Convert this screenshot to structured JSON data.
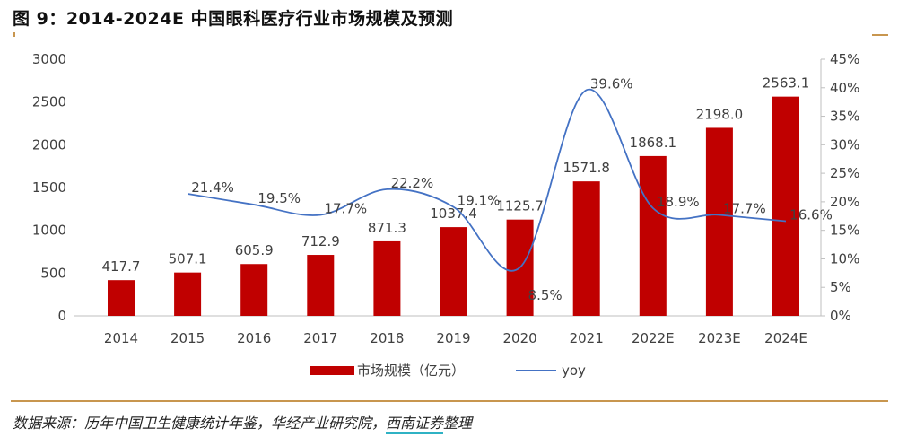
{
  "title": "图 9：2014-2024E 中国眼科医疗行业市场规模及预测",
  "source": {
    "prefix": "数据来源：历年中国卫生健康统计年鉴，华经产业研究院，",
    "highlight": "西南证券",
    "suffix": "整理"
  },
  "chart_data": {
    "type": "bar+line",
    "categories": [
      "2014",
      "2015",
      "2016",
      "2017",
      "2018",
      "2019",
      "2020",
      "2021",
      "2022E",
      "2023E",
      "2024E"
    ],
    "series": [
      {
        "name": "市场规模（亿元）",
        "type": "bar",
        "axis": "left",
        "color": "#C00000",
        "values": [
          417.7,
          507.1,
          605.9,
          712.9,
          871.3,
          1037.4,
          1125.7,
          1571.8,
          1868.1,
          2198.0,
          2563.1
        ],
        "labels": [
          "417.7",
          "507.1",
          "605.9",
          "712.9",
          "871.3",
          "1037.4",
          "1125.7",
          "1571.8",
          "1868.1",
          "2198.0",
          "2563.1"
        ]
      },
      {
        "name": "yoy",
        "type": "line",
        "axis": "right",
        "color": "#4472C4",
        "values": [
          null,
          21.4,
          19.5,
          17.7,
          22.2,
          19.1,
          8.5,
          39.6,
          18.9,
          17.7,
          16.6
        ],
        "labels": [
          "",
          "21.4%",
          "19.5%",
          "17.7%",
          "22.2%",
          "19.1%",
          "8.5%",
          "39.6%",
          "18.9%",
          "17.7%",
          "16.6%"
        ]
      }
    ],
    "left_axis": {
      "min": 0,
      "max": 3000,
      "ticks": [
        "0",
        "500",
        "1000",
        "1500",
        "2000",
        "2500",
        "3000"
      ]
    },
    "right_axis": {
      "min": 0,
      "max": 45,
      "ticks": [
        "0%",
        "5%",
        "10%",
        "15%",
        "20%",
        "25%",
        "30%",
        "35%",
        "40%",
        "45%"
      ]
    },
    "grid": false,
    "legend": "bottom"
  }
}
